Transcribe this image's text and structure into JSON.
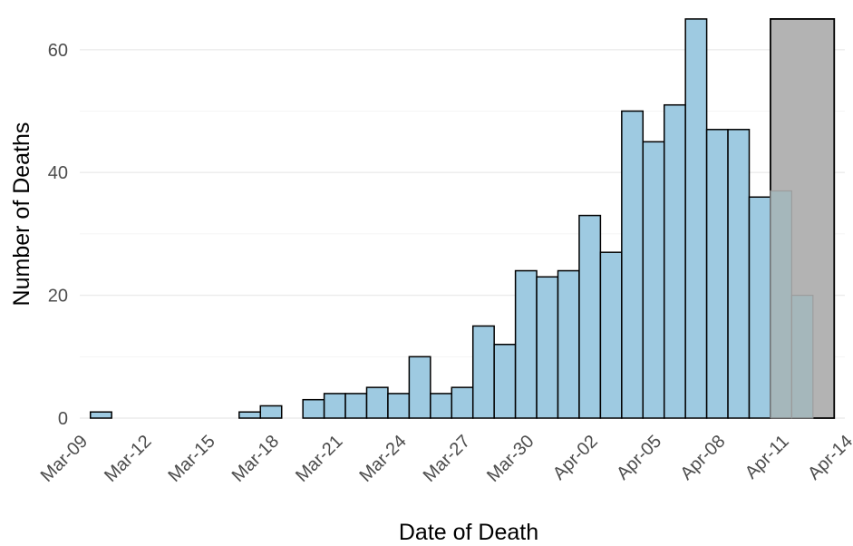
{
  "chart_data": {
    "type": "bar",
    "title": "",
    "xlabel": "Date of Death",
    "ylabel": "Number of Deaths",
    "x_tick_labels": [
      "Mar-09",
      "Mar-12",
      "Mar-15",
      "Mar-18",
      "Mar-21",
      "Mar-24",
      "Mar-27",
      "Mar-30",
      "Apr-02",
      "Apr-05",
      "Apr-08",
      "Apr-11",
      "Apr-14"
    ],
    "y_tick_labels": [
      "0",
      "20",
      "40",
      "60"
    ],
    "y_ticks": [
      0,
      20,
      40,
      60
    ],
    "ylim": [
      0,
      65
    ],
    "xlim": [
      "2020-03-09",
      "2020-04-14"
    ],
    "grid": true,
    "legend": "none",
    "bar_color": "#9ecae1",
    "pending_color": "#a3b8bd",
    "shade_color": "#b3b3b3",
    "categories": [
      "2020-03-10",
      "2020-03-11",
      "2020-03-12",
      "2020-03-13",
      "2020-03-14",
      "2020-03-15",
      "2020-03-16",
      "2020-03-17",
      "2020-03-18",
      "2020-03-19",
      "2020-03-20",
      "2020-03-21",
      "2020-03-22",
      "2020-03-23",
      "2020-03-24",
      "2020-03-25",
      "2020-03-26",
      "2020-03-27",
      "2020-03-28",
      "2020-03-29",
      "2020-03-30",
      "2020-03-31",
      "2020-04-01",
      "2020-04-02",
      "2020-04-03",
      "2020-04-04",
      "2020-04-05",
      "2020-04-06",
      "2020-04-07",
      "2020-04-08",
      "2020-04-09",
      "2020-04-10",
      "2020-04-11"
    ],
    "values": [
      1,
      0,
      0,
      0,
      0,
      0,
      0,
      1,
      2,
      0,
      3,
      4,
      4,
      5,
      4,
      10,
      4,
      5,
      15,
      12,
      24,
      23,
      24,
      33,
      27,
      50,
      45,
      51,
      65,
      47,
      47,
      36,
      37
    ],
    "pending": [
      {
        "x": "2020-04-11",
        "y": 37
      },
      {
        "x": "2020-04-12",
        "y": 20
      }
    ],
    "shaded_region": {
      "start": "2020-04-11",
      "end": "2020-04-14",
      "top": 65
    }
  }
}
